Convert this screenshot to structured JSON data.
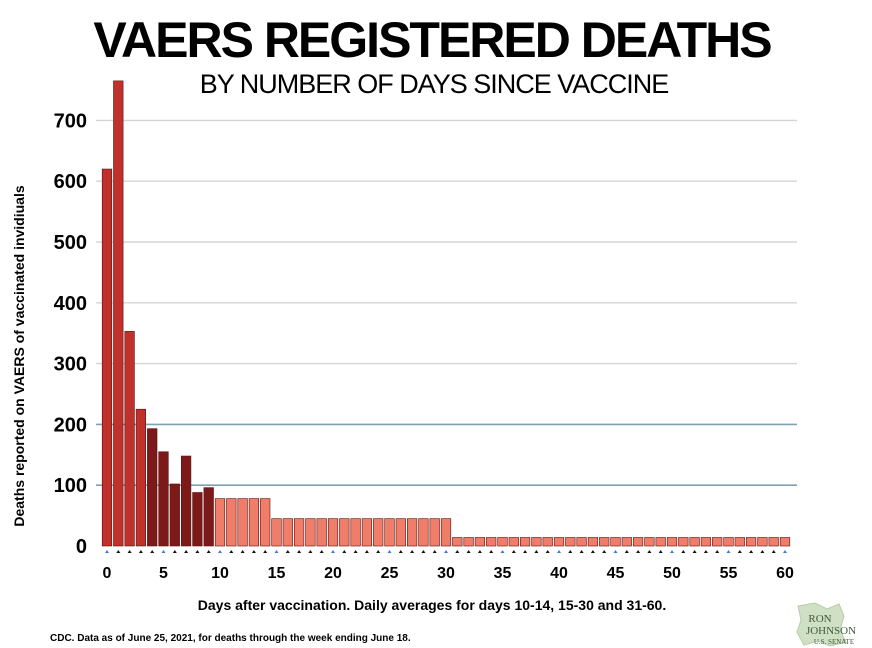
{
  "chart_data": {
    "type": "bar",
    "title": "VAERS REGISTERED DEATHS",
    "subtitle": "BY NUMBER OF DAYS SINCE VACCINE",
    "ylabel": "Deaths reported on VAERS of vaccinated invidiuals",
    "xlabel": "Days after vaccination. Daily averages for days 10-14, 15-30 and 31-60.",
    "source": "CDC. Data as of June 25, 2021, for deaths through the week ending June 18.",
    "ylim": [
      0,
      770
    ],
    "yticks": [
      0,
      100,
      200,
      300,
      400,
      500,
      600,
      700
    ],
    "xticks": [
      0,
      5,
      10,
      15,
      20,
      25,
      30,
      35,
      40,
      45,
      50,
      55,
      60
    ],
    "grid": true,
    "highlight_gridlines": [
      100,
      200
    ],
    "x": [
      0,
      1,
      2,
      3,
      4,
      5,
      6,
      7,
      8,
      9,
      10,
      11,
      12,
      13,
      14,
      15,
      16,
      17,
      18,
      19,
      20,
      21,
      22,
      23,
      24,
      25,
      26,
      27,
      28,
      29,
      30,
      31,
      32,
      33,
      34,
      35,
      36,
      37,
      38,
      39,
      40,
      41,
      42,
      43,
      44,
      45,
      46,
      47,
      48,
      49,
      50,
      51,
      52,
      53,
      54,
      55,
      56,
      57,
      58,
      59,
      60
    ],
    "values": [
      620,
      765,
      353,
      225,
      193,
      155,
      102,
      148,
      88,
      96,
      78,
      78,
      78,
      78,
      78,
      45,
      45,
      45,
      45,
      45,
      45,
      45,
      45,
      45,
      45,
      45,
      45,
      45,
      45,
      45,
      45,
      14,
      14,
      14,
      14,
      14,
      14,
      14,
      14,
      14,
      14,
      14,
      14,
      14,
      14,
      14,
      14,
      14,
      14,
      14,
      14,
      14,
      14,
      14,
      14,
      14,
      14,
      14,
      14,
      14,
      14
    ],
    "colors": {
      "days_0_3": "#c0312b",
      "days_4_9": "#7c1a1a",
      "daily_averages": "#ef7d6a",
      "gridline": "#d5d5d5",
      "highlight_gridline": "#7fa0b4",
      "marker_black": "#111111",
      "marker_blue": "#3a7bd5"
    }
  },
  "logo": {
    "line1": "RON",
    "line2": "JOHNSON",
    "line3": "U.S. SENATE"
  }
}
